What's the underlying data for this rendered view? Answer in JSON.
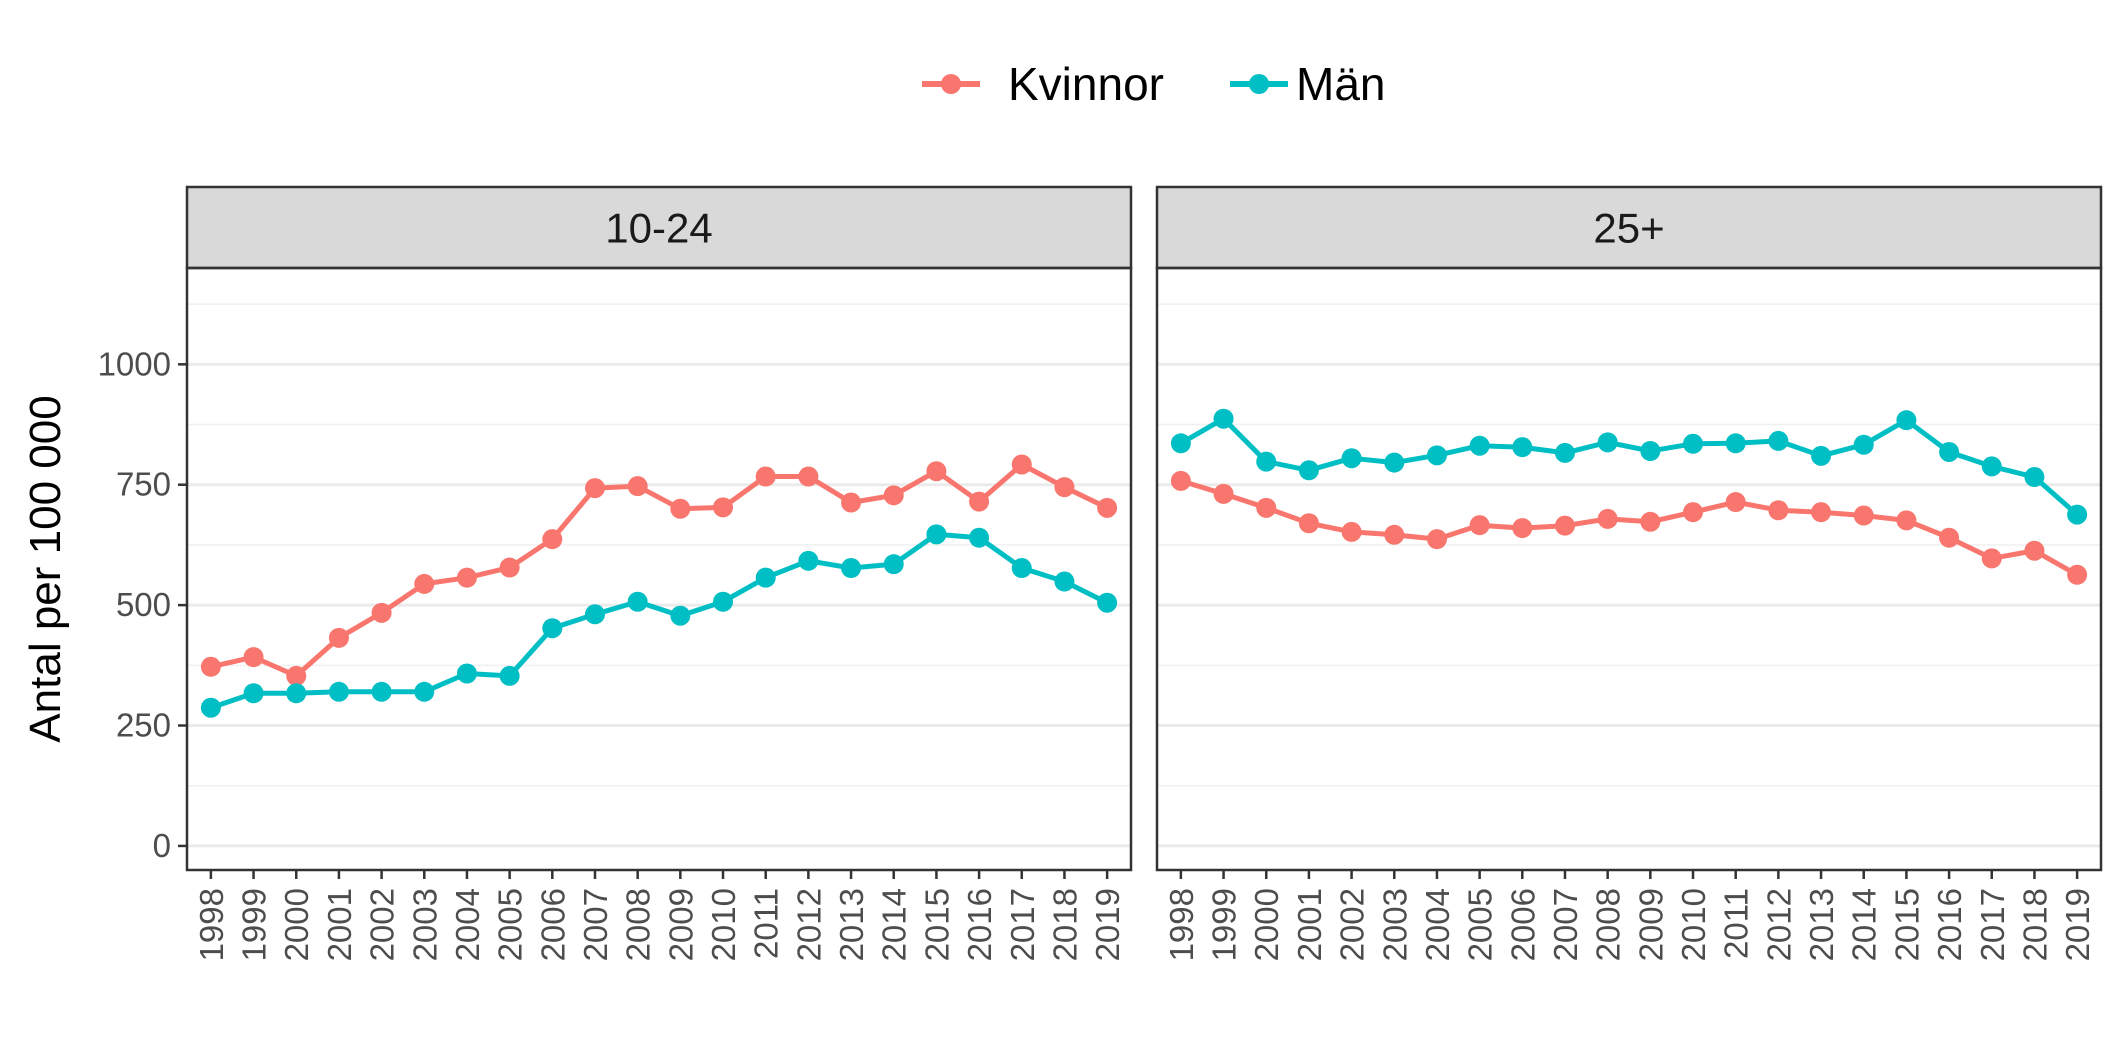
{
  "chart_data": {
    "type": "line",
    "facet_style": "panels side by side with grey title strips",
    "ylabel": "Antal per 100 000",
    "ylim": [
      -50,
      1200
    ],
    "y_ticks": [
      0,
      250,
      500,
      750,
      1000
    ],
    "y_tick_labels": [
      "0",
      "250",
      "500",
      "750",
      "1000"
    ],
    "x": [
      "1998",
      "1999",
      "2000",
      "2001",
      "2002",
      "2003",
      "2004",
      "2005",
      "2006",
      "2007",
      "2008",
      "2009",
      "2010",
      "2011",
      "2012",
      "2013",
      "2014",
      "2015",
      "2016",
      "2017",
      "2018",
      "2019"
    ],
    "legend": {
      "position": "top",
      "entries": [
        {
          "name": "Kvinnor",
          "color": "#F8766D"
        },
        {
          "name": "Män",
          "color": "#00BFC4"
        }
      ]
    },
    "grid": true,
    "panels": [
      {
        "title": "10-24",
        "series": [
          {
            "name": "Kvinnor",
            "color": "#F8766D",
            "values": [
              372,
              392,
              353,
              432,
              484,
              544,
              557,
              578,
              637,
              743,
              747,
              700,
              703,
              767,
              767,
              713,
              728,
              778,
              715,
              792,
              745,
              702
            ]
          },
          {
            "name": "Män",
            "color": "#00BFC4",
            "values": [
              287,
              317,
              317,
              320,
              320,
              320,
              358,
              353,
              452,
              481,
              507,
              478,
              507,
              557,
              592,
              577,
              585,
              647,
              640,
              577,
              549,
              505
            ]
          }
        ]
      },
      {
        "title": "25+",
        "series": [
          {
            "name": "Kvinnor",
            "color": "#F8766D",
            "values": [
              758,
              731,
              702,
              670,
              652,
              646,
              637,
              666,
              660,
              665,
              679,
              673,
              693,
              714,
              697,
              693,
              686,
              676,
              640,
              597,
              613,
              563
            ]
          },
          {
            "name": "Män",
            "color": "#00BFC4",
            "values": [
              836,
              887,
              798,
              780,
              805,
              796,
              811,
              831,
              828,
              816,
              838,
              820,
              835,
              836,
              841,
              810,
              833,
              884,
              818,
              788,
              766,
              688
            ]
          }
        ]
      }
    ]
  }
}
